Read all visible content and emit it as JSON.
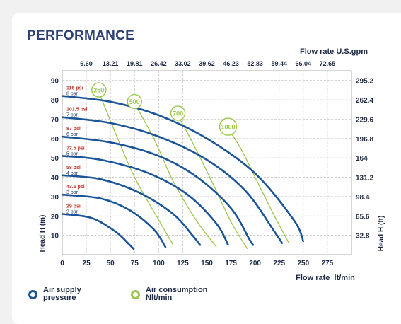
{
  "page": {
    "title": "PERFORMANCE"
  },
  "legend": {
    "items": [
      {
        "label_line1": "Air supply",
        "label_line2": "pressure",
        "color": "#1b5597"
      },
      {
        "label_line1": "Air consumption",
        "label_line2": "Nlt/min",
        "color": "#9bc74a"
      }
    ]
  },
  "chart_data": {
    "type": "line",
    "title": "PERFORMANCE",
    "xlabel": "Flow rate  lt/min",
    "ylabel": "Head H (m)",
    "x2label": "Flow rate U.S.gpm",
    "y2label": "Head H (ft)",
    "xlim": [
      0,
      300
    ],
    "ylim": [
      0,
      95
    ],
    "x_ticks": [
      0,
      25,
      50,
      75,
      100,
      125,
      150,
      175,
      200,
      225,
      250,
      275
    ],
    "y_ticks": [
      10,
      20,
      30,
      40,
      50,
      60,
      70,
      80,
      90
    ],
    "x2_ticks": [
      "6.60",
      "13.21",
      "19.81",
      "26.42",
      "33.02",
      "39.62",
      "46.23",
      "52.83",
      "59.44",
      "66.04",
      "72.65"
    ],
    "y2_ticks": [
      "32.8",
      "65.6",
      "98.4",
      "131.2",
      "164",
      "196.8",
      "229.6",
      "262.4",
      "295.2"
    ],
    "grid": true,
    "pressure_series": [
      {
        "psi": "116 psi",
        "bar": "8 bar",
        "points": [
          [
            0,
            82
          ],
          [
            50,
            79
          ],
          [
            100,
            72
          ],
          [
            150,
            60
          ],
          [
            200,
            42
          ],
          [
            240,
            18
          ],
          [
            250,
            7
          ]
        ]
      },
      {
        "psi": "101.5 psi",
        "bar": "7 bar",
        "points": [
          [
            0,
            71
          ],
          [
            50,
            68
          ],
          [
            100,
            61
          ],
          [
            150,
            49
          ],
          [
            190,
            33
          ],
          [
            220,
            12
          ],
          [
            228,
            6
          ]
        ]
      },
      {
        "psi": "87 psi",
        "bar": "6 bar",
        "points": [
          [
            0,
            61
          ],
          [
            50,
            58
          ],
          [
            100,
            51
          ],
          [
            140,
            40
          ],
          [
            175,
            24
          ],
          [
            194,
            8
          ],
          [
            198,
            5
          ]
        ]
      },
      {
        "psi": "72.5 psi",
        "bar": "5 bar",
        "points": [
          [
            0,
            51
          ],
          [
            40,
            49
          ],
          [
            90,
            42
          ],
          [
            130,
            31
          ],
          [
            160,
            16
          ],
          [
            172,
            5
          ]
        ]
      },
      {
        "psi": "58 psi",
        "bar": "4 bar",
        "points": [
          [
            0,
            41
          ],
          [
            40,
            39
          ],
          [
            80,
            32
          ],
          [
            115,
            21
          ],
          [
            135,
            10
          ],
          [
            143,
            5
          ]
        ]
      },
      {
        "psi": "43.5 psi",
        "bar": "3 bar",
        "points": [
          [
            0,
            31
          ],
          [
            40,
            29
          ],
          [
            70,
            23
          ],
          [
            95,
            13
          ],
          [
            107,
            4
          ]
        ]
      },
      {
        "psi": "29 psi",
        "bar": "2 bar",
        "points": [
          [
            0,
            21
          ],
          [
            30,
            19
          ],
          [
            55,
            12
          ],
          [
            70,
            5
          ],
          [
            74,
            3
          ]
        ]
      }
    ],
    "air_consumption_series": [
      {
        "label": "250",
        "points": [
          [
            38,
            84
          ],
          [
            55,
            63
          ],
          [
            75,
            40
          ],
          [
            100,
            18
          ],
          [
            115,
            5
          ]
        ]
      },
      {
        "label": "500",
        "points": [
          [
            75,
            78
          ],
          [
            95,
            60
          ],
          [
            115,
            38
          ],
          [
            140,
            17
          ],
          [
            160,
            4
          ]
        ]
      },
      {
        "label": "700",
        "points": [
          [
            120,
            72
          ],
          [
            135,
            58
          ],
          [
            155,
            38
          ],
          [
            175,
            17
          ],
          [
            192,
            3
          ]
        ]
      },
      {
        "label": "1000",
        "points": [
          [
            172,
            65
          ],
          [
            185,
            55
          ],
          [
            200,
            40
          ],
          [
            218,
            22
          ],
          [
            235,
            6
          ]
        ]
      }
    ],
    "colors": {
      "pressure": "#1b5597",
      "air": "#9bc74a",
      "psi_label": "#c0392b",
      "bar_label": "#2b4170"
    }
  }
}
